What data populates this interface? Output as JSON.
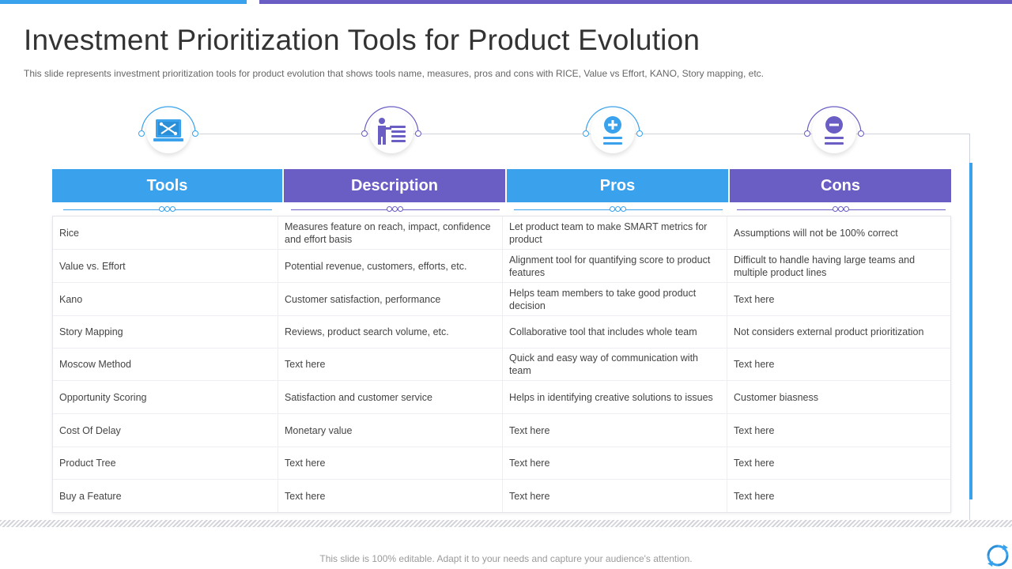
{
  "slide": {
    "title": "Investment Prioritization Tools for Product Evolution",
    "subtitle": "This slide represents investment prioritization tools for product evolution that shows tools name, measures, pros and cons with RICE, Value vs Effort,  KANO, Story  mapping, etc.",
    "footer_note": "This slide is 100% editable. Adapt it to your needs and capture your audience's attention."
  },
  "colors": {
    "blue": "#3aa2ec",
    "purple": "#6a5ec4",
    "line": "#cfd3dc"
  },
  "icons": [
    "laptop-tools-icon",
    "presenter-list-icon",
    "plus-circle-icon",
    "minus-circle-icon"
  ],
  "table": {
    "headers": [
      "Tools",
      "Description",
      "Pros",
      "Cons"
    ],
    "rows": [
      [
        "Rice",
        "Measures feature on reach, impact, confidence and effort basis",
        "Let product team to make SMART metrics for product",
        "Assumptions will not be 100% correct"
      ],
      [
        "Value vs. Effort",
        "Potential revenue,  customers,  efforts,  etc.",
        "Alignment tool for quantifying score to product features",
        "Difficult to handle having  large teams and multiple product lines"
      ],
      [
        "Kano",
        "Customer satisfaction, performance",
        "Helps team members to take good product decision",
        "Text here"
      ],
      [
        "Story Mapping",
        "Reviews,  product search volume,  etc.",
        "Collaborative  tool that includes whole team",
        "Not considers external product prioritization"
      ],
      [
        "Moscow Method",
        "Text here",
        "Quick and easy way of communication with team",
        "Text here"
      ],
      [
        "Opportunity Scoring",
        "Satisfaction and customer service",
        "Helps in identifying creative solutions to issues",
        "Customer biasness"
      ],
      [
        "Cost Of Delay",
        "Monetary value",
        "Text here",
        "Text here"
      ],
      [
        "Product Tree",
        "Text here",
        "Text here",
        "Text here"
      ],
      [
        "Buy a Feature",
        "Text here",
        "Text here",
        "Text here"
      ]
    ]
  }
}
